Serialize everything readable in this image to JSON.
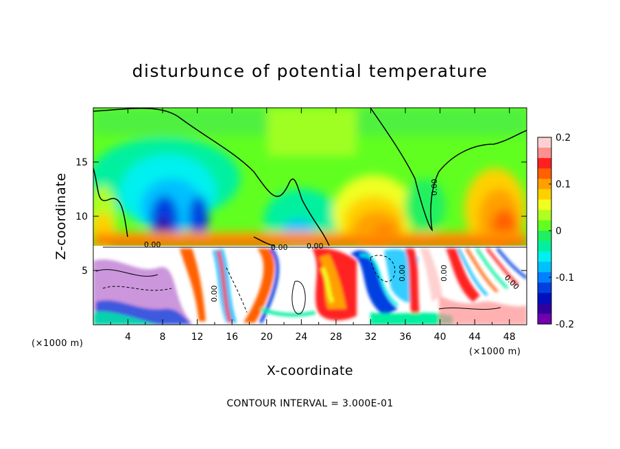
{
  "chart_data": {
    "type": "heatmap",
    "title": "disturbunce of potential temperature",
    "xlabel": "X-coordinate",
    "ylabel": "Z-coordinate",
    "x_unit": "(×1000 m)",
    "z_unit": "(×1000 m)",
    "xlim": [
      0,
      50
    ],
    "ylim": [
      0,
      20
    ],
    "x_ticks": [
      "4",
      "8",
      "12",
      "16",
      "20",
      "24",
      "28",
      "32",
      "36",
      "40",
      "44",
      "48"
    ],
    "y_ticks": [
      "5",
      "10",
      "15"
    ],
    "colorbar": {
      "range": [
        -0.2,
        0.2
      ],
      "ticks": [
        "0.2",
        "0.1",
        "0",
        "-0.1",
        "-0.2"
      ],
      "colors": [
        "#ffd0d0",
        "#ff9090",
        "#ff2020",
        "#ff6000",
        "#ffa000",
        "#ffd000",
        "#f0ff20",
        "#b0ff20",
        "#60ff20",
        "#20f060",
        "#00f0a0",
        "#00f0f0",
        "#00c0ff",
        "#0080ff",
        "#0040e0",
        "#0010c0",
        "#3000a0",
        "#7000b0"
      ]
    },
    "contour_interval": "CONTOUR INTERVAL = 3.000E-01",
    "contour_labels": [
      "0.00",
      "0.00",
      "0.00",
      "0.00",
      "0.00",
      "0.00",
      "0.00",
      "0.00"
    ]
  }
}
